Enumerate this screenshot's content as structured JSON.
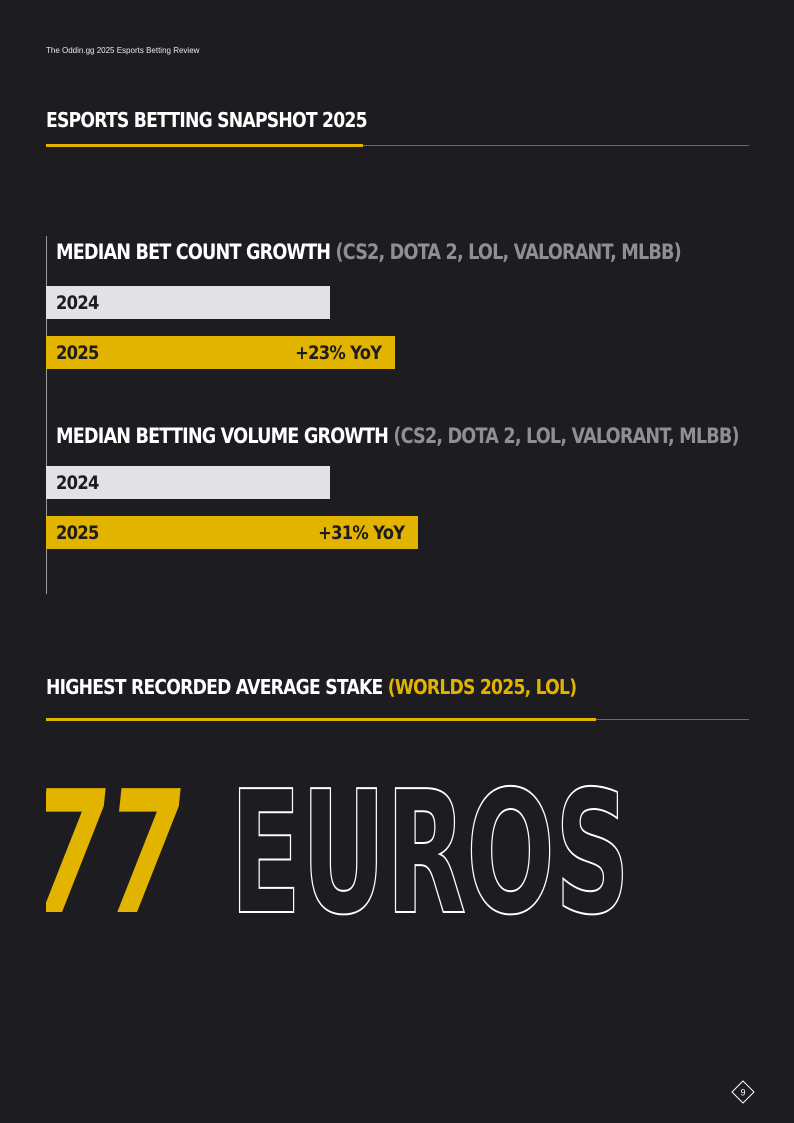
{
  "header": {
    "running_title": "The Oddin.gg 2025 Esports Betting Review"
  },
  "snapshot": {
    "title": "ESPORTS BETTING SNAPSHOT 2025",
    "metrics": [
      {
        "title": "MEDIAN BET COUNT GROWTH",
        "qualifier": "(CS2, DOTA 2, LOL, VALORANT, MLBB)",
        "bars": [
          {
            "year": "2024",
            "growth": ""
          },
          {
            "year": "2025",
            "growth": "+23% YoY"
          }
        ]
      },
      {
        "title": "MEDIAN BETTING VOLUME GROWTH",
        "qualifier": "(CS2, DOTA 2, LOL, VALORANT, MLBB)",
        "bars": [
          {
            "year": "2024",
            "growth": ""
          },
          {
            "year": "2025",
            "growth": "+31% YoY"
          }
        ]
      }
    ]
  },
  "chart_data": {
    "type": "bar",
    "series": [
      {
        "name": "MEDIAN BET COUNT GROWTH",
        "categories": [
          "2024",
          "2025"
        ],
        "values": [
          100,
          123
        ]
      },
      {
        "name": "MEDIAN BETTING VOLUME GROWTH",
        "categories": [
          "2024",
          "2025"
        ],
        "values": [
          100,
          131
        ]
      }
    ],
    "title": "",
    "xlabel": "",
    "ylabel": ""
  },
  "stake": {
    "title": "HIGHEST RECORDED AVERAGE STAKE",
    "qualifier": "(WORLDS 2025, LOL)",
    "number": "77",
    "unit": "EUROS"
  },
  "footer": {
    "page_number": "9"
  },
  "colors": {
    "background": "#1c1c21",
    "accent": "#e2b400",
    "bar_prev": "#e2e2e6",
    "muted": "#8e8e96"
  }
}
